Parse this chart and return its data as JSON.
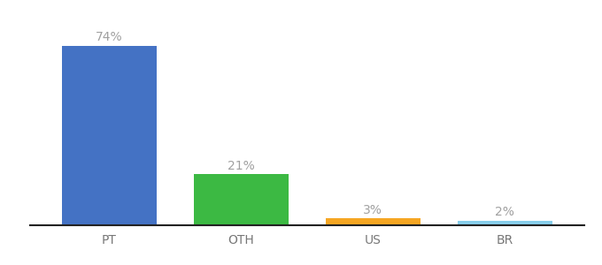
{
  "categories": [
    "PT",
    "OTH",
    "US",
    "BR"
  ],
  "values": [
    74,
    21,
    3,
    2
  ],
  "bar_colors": [
    "#4472c4",
    "#3cb943",
    "#f5a623",
    "#87ceeb"
  ],
  "labels": [
    "74%",
    "21%",
    "3%",
    "2%"
  ],
  "ylim": [
    0,
    84
  ],
  "label_color": "#a0a0a0",
  "xlabel_color": "#777777",
  "background_color": "#ffffff",
  "bar_width": 0.72,
  "label_fontsize": 10,
  "xlabel_fontsize": 10
}
